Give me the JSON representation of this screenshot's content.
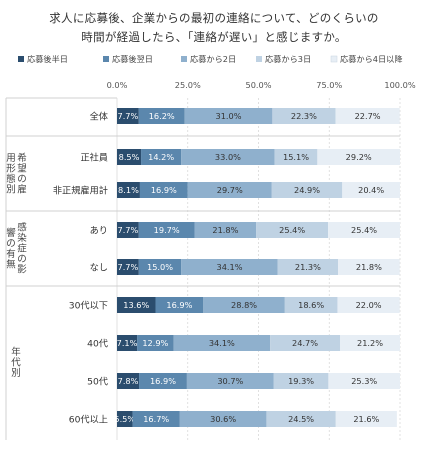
{
  "chart_data": {
    "type": "bar",
    "orientation": "horizontal",
    "stacked": true,
    "title_lines": [
      "求人に応募後、企業からの最初の連絡について、どのくらいの",
      "時間が経過したら、「連絡が遅い」と感じますか。"
    ],
    "xlim": [
      0,
      100
    ],
    "x_ticks": [
      "0.0%",
      "25.0%",
      "50.0%",
      "75.0%",
      "100.0%"
    ],
    "grid": true,
    "legend_position": "top",
    "series": [
      {
        "name": "応募後半日",
        "color": "#2b4d6e"
      },
      {
        "name": "応募後翌日",
        "color": "#5b87ad"
      },
      {
        "name": "応募から2日",
        "color": "#8fb0cd"
      },
      {
        "name": "応募から3日",
        "color": "#bfd2e3"
      },
      {
        "name": "応募から4日以降",
        "color": "#e7eef5"
      }
    ],
    "groups": [
      {
        "label": "",
        "rows": [
          {
            "label": "全体",
            "values": [
              7.7,
              16.2,
              31.0,
              22.3,
              22.7
            ]
          }
        ]
      },
      {
        "label": "希望の雇用形態別",
        "rows": [
          {
            "label": "正社員",
            "values": [
              8.5,
              14.2,
              33.0,
              15.1,
              29.2
            ]
          },
          {
            "label": "非正規雇用計",
            "values": [
              8.1,
              16.9,
              29.7,
              24.9,
              20.4
            ]
          }
        ]
      },
      {
        "label": "感染症の影響の有無",
        "rows": [
          {
            "label": "あり",
            "values": [
              7.7,
              19.7,
              21.8,
              25.4,
              25.4
            ]
          },
          {
            "label": "なし",
            "values": [
              7.7,
              15.0,
              34.1,
              21.3,
              21.8
            ]
          }
        ]
      },
      {
        "label": "年代別",
        "rows": [
          {
            "label": "30代以下",
            "values": [
              13.6,
              16.9,
              28.8,
              18.6,
              22.0
            ]
          },
          {
            "label": "40代",
            "values": [
              7.1,
              12.9,
              34.1,
              24.7,
              21.2
            ]
          },
          {
            "label": "50代",
            "values": [
              7.8,
              16.9,
              30.7,
              19.3,
              25.3
            ]
          },
          {
            "label": "60代以上",
            "values": [
              5.5,
              16.7,
              30.6,
              24.5,
              21.6
            ]
          }
        ]
      }
    ]
  }
}
